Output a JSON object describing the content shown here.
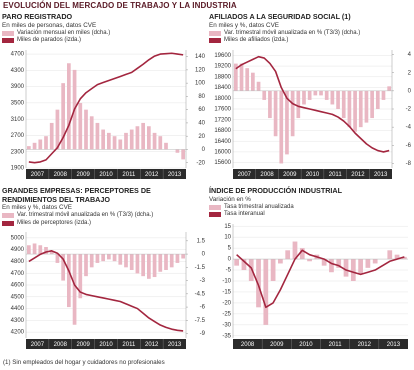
{
  "title": "EVOLUCIÓN DEL MERCADO DE TRABAJO Y LA INDUSTRIA",
  "footnote": "(1) Sin empleados del hogar y cuidadores no profesionales",
  "chart_data": [
    {
      "type": "combo",
      "title": "PARO REGISTRADO",
      "subtitle": "En miles de personas, datos CVE",
      "x": [
        2007,
        2007.25,
        2007.5,
        2007.75,
        2008,
        2008.25,
        2008.5,
        2008.75,
        2009,
        2009.25,
        2009.5,
        2009.75,
        2010,
        2010.25,
        2010.5,
        2010.75,
        2011,
        2011.25,
        2011.5,
        2011.75,
        2012,
        2012.25,
        2012.5,
        2012.75,
        2013,
        2013.25,
        2013.5,
        2013.75
      ],
      "xlim": [
        2007,
        2014
      ],
      "xticks": [
        {
          "value": 2007.5,
          "label": "2007"
        },
        {
          "value": 2008.5,
          "label": "2008"
        },
        {
          "value": 2009.5,
          "label": "2009"
        },
        {
          "value": 2010.5,
          "label": "2010"
        },
        {
          "value": 2011.5,
          "label": "2011"
        },
        {
          "value": 2012.5,
          "label": "2012"
        },
        {
          "value": 2013.5,
          "label": "2013"
        }
      ],
      "ylim": [
        1900,
        4800
      ],
      "yticks": [
        1900,
        2300,
        2700,
        3100,
        3500,
        3900,
        4300,
        4700
      ],
      "y2lim": [
        -28,
        150
      ],
      "y2ticks": [
        -20,
        0,
        20,
        40,
        60,
        80,
        100,
        120,
        140
      ],
      "grid": true,
      "series": [
        {
          "name": "Variación mensual en miles (dcha.)",
          "type": "bar",
          "axis": "y2",
          "color": "#e9b7c3",
          "values": [
            5,
            10,
            15,
            20,
            40,
            60,
            100,
            130,
            120,
            70,
            60,
            50,
            40,
            30,
            25,
            20,
            15,
            25,
            30,
            35,
            40,
            35,
            25,
            20,
            10,
            0,
            -5,
            -15
          ]
        },
        {
          "name": "Miles de parados (izda.)",
          "type": "line",
          "axis": "y",
          "color": "#a3263f",
          "values": [
            2050,
            2030,
            2050,
            2100,
            2250,
            2400,
            2650,
            2950,
            3350,
            3600,
            3750,
            3850,
            3950,
            4000,
            4050,
            4100,
            4150,
            4200,
            4250,
            4350,
            4450,
            4560,
            4650,
            4700,
            4710,
            4720,
            4700,
            4680
          ]
        }
      ]
    },
    {
      "type": "combo",
      "title": "AFILIADOS A LA SEGURIDAD SOCIAL (1)",
      "subtitle": "En miles y %, datos CVE",
      "x": [
        2007,
        2007.25,
        2007.5,
        2007.75,
        2008,
        2008.25,
        2008.5,
        2008.75,
        2009,
        2009.25,
        2009.5,
        2009.75,
        2010,
        2010.25,
        2010.5,
        2010.75,
        2011,
        2011.25,
        2011.5,
        2011.75,
        2012,
        2012.25,
        2012.5,
        2012.75,
        2013,
        2013.25,
        2013.5,
        2013.75
      ],
      "xlim": [
        2007,
        2014
      ],
      "xticks": [
        {
          "value": 2007.5,
          "label": "2007"
        },
        {
          "value": 2008.5,
          "label": "2008"
        },
        {
          "value": 2009.5,
          "label": "2009"
        },
        {
          "value": 2010.5,
          "label": "2010"
        },
        {
          "value": 2011.5,
          "label": "2011"
        },
        {
          "value": 2012.5,
          "label": "2012"
        },
        {
          "value": 2013.5,
          "label": "2013"
        }
      ],
      "ylim": [
        15400,
        19800
      ],
      "yticks": [
        15600,
        16000,
        16400,
        16800,
        17200,
        17600,
        18000,
        18400,
        18800,
        19200,
        19600
      ],
      "y2lim": [
        -8.5,
        4.5
      ],
      "y2ticks": [
        -8,
        -6,
        -4,
        -2,
        0,
        2,
        4
      ],
      "grid": true,
      "series": [
        {
          "name": "Var. trimestral móvil anualizada en % (T3/3) (dcha.)",
          "type": "bar",
          "axis": "y2",
          "color": "#e9b7c3",
          "values": [
            3,
            3,
            2.5,
            2,
            1,
            -1,
            -3,
            -5,
            -8,
            -7,
            -5,
            -3,
            -1.5,
            -1,
            -0.5,
            -0.5,
            -1,
            -1.5,
            -2,
            -3,
            -4,
            -4.5,
            -4,
            -3.5,
            -3,
            -2,
            -1,
            0.5
          ]
        },
        {
          "name": "Miles de afiliados (izda.)",
          "type": "line",
          "axis": "y",
          "color": "#a3263f",
          "values": [
            19100,
            19250,
            19350,
            19450,
            19550,
            19500,
            19300,
            19000,
            18400,
            18000,
            17800,
            17700,
            17650,
            17600,
            17550,
            17500,
            17450,
            17400,
            17300,
            17150,
            16950,
            16700,
            16500,
            16300,
            16150,
            16050,
            16000,
            16050
          ]
        }
      ]
    },
    {
      "type": "combo",
      "title": "GRANDES EMPRESAS: PERCEPTORES DE RENDIMIENTOS DEL TRABAJO",
      "subtitle": "En miles y %, datos CVE",
      "x": [
        2007,
        2007.25,
        2007.5,
        2007.75,
        2008,
        2008.25,
        2008.5,
        2008.75,
        2009,
        2009.25,
        2009.5,
        2009.75,
        2010,
        2010.25,
        2010.5,
        2010.75,
        2011,
        2011.25,
        2011.5,
        2011.75,
        2012,
        2012.25,
        2012.5,
        2012.75,
        2013,
        2013.25,
        2013.5,
        2013.75
      ],
      "xlim": [
        2007,
        2014
      ],
      "xticks": [
        {
          "value": 2007.5,
          "label": "2007"
        },
        {
          "value": 2008.5,
          "label": "2008"
        },
        {
          "value": 2009.5,
          "label": "2009"
        },
        {
          "value": 2010.5,
          "label": "2010"
        },
        {
          "value": 2011.5,
          "label": "2011"
        },
        {
          "value": 2012.5,
          "label": "2012"
        },
        {
          "value": 2013.5,
          "label": "2013"
        }
      ],
      "ylim": [
        4150,
        5050
      ],
      "yticks": [
        4200,
        4300,
        4400,
        4500,
        4600,
        4700,
        4800,
        4900,
        5000
      ],
      "y2lim": [
        -9.5,
        2.5
      ],
      "y2ticks": [
        -9,
        -7.5,
        -6,
        -4.5,
        -3,
        -1.5,
        0,
        1.5
      ],
      "grid": true,
      "series": [
        {
          "name": "Var. trimestral móvil anualizada en % (T3/3) (dcha.)",
          "type": "bar",
          "axis": "y2",
          "color": "#e9b7c3",
          "values": [
            1,
            1.2,
            1,
            0.8,
            0.3,
            -1,
            -3,
            -6,
            -8,
            -5,
            -2.5,
            -1.5,
            -1,
            -0.8,
            -0.6,
            -0.8,
            -1.2,
            -1.5,
            -1.8,
            -2.2,
            -2.5,
            -2.8,
            -2.6,
            -2,
            -1.8,
            -1.5,
            -1,
            -0.5
          ]
        },
        {
          "name": "Miles de perceptores (izda.)",
          "type": "line",
          "axis": "y",
          "color": "#a3263f",
          "values": [
            4800,
            4830,
            4860,
            4880,
            4890,
            4870,
            4820,
            4720,
            4600,
            4540,
            4520,
            4510,
            4500,
            4490,
            4480,
            4470,
            4460,
            4440,
            4420,
            4400,
            4360,
            4320,
            4290,
            4260,
            4240,
            4225,
            4215,
            4210
          ]
        }
      ]
    },
    {
      "type": "combo",
      "title": "ÍNDICE DE PRODUCCIÓN INDUSTRIAL",
      "subtitle": "Variación en %",
      "x": [
        2008,
        2008.25,
        2008.5,
        2008.75,
        2009,
        2009.25,
        2009.5,
        2009.75,
        2010,
        2010.25,
        2010.5,
        2010.75,
        2011,
        2011.25,
        2011.5,
        2011.75,
        2012,
        2012.25,
        2012.5,
        2012.75,
        2013,
        2013.25,
        2013.5,
        2013.75
      ],
      "xlim": [
        2008,
        2014
      ],
      "xticks": [
        {
          "value": 2008.5,
          "label": "2008"
        },
        {
          "value": 2009.5,
          "label": "2009"
        },
        {
          "value": 2010.5,
          "label": "2010"
        },
        {
          "value": 2011.5,
          "label": "2011"
        },
        {
          "value": 2012.5,
          "label": "2012"
        },
        {
          "value": 2013.5,
          "label": "2013"
        }
      ],
      "ylim": [
        -36,
        16
      ],
      "yticks": [
        -35,
        -30,
        -25,
        -20,
        -15,
        -10,
        -5,
        0,
        5,
        10,
        15
      ],
      "grid": true,
      "series": [
        {
          "name": "Tasa trimestral anualizada",
          "type": "bar",
          "axis": "y",
          "color": "#e9b7c3",
          "values": [
            -3,
            -5,
            -10,
            -22,
            -30,
            -10,
            -2,
            4,
            8,
            5,
            -1,
            2,
            -3,
            -6,
            -4,
            -8,
            -10,
            -7,
            -4,
            -2,
            0,
            4,
            2,
            1
          ]
        },
        {
          "name": "Tasa interanual",
          "type": "line",
          "axis": "y",
          "color": "#a3263f",
          "values": [
            2,
            -1,
            -4,
            -12,
            -22,
            -20,
            -14,
            -7,
            0,
            4,
            2,
            1,
            0,
            -2,
            -3,
            -5,
            -6,
            -7,
            -6,
            -5,
            -3,
            -1,
            0,
            1
          ]
        }
      ]
    }
  ]
}
